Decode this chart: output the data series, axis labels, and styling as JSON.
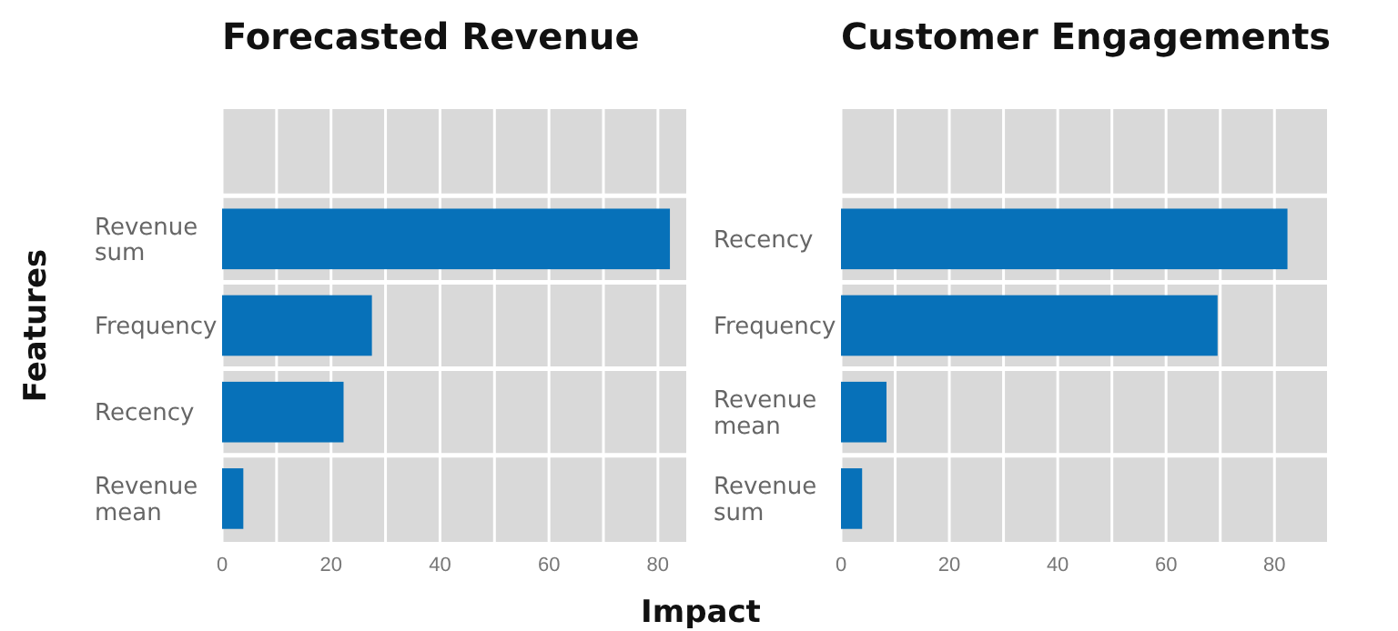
{
  "chart_data": [
    {
      "type": "bar",
      "orientation": "horizontal",
      "title": "Forecasted Revenue",
      "ylabel": "Features",
      "categories": [
        null,
        "Revenue sum",
        "Frequency",
        "Recency",
        "Revenue mean"
      ],
      "values": [
        null,
        82.2,
        27.5,
        22.3,
        3.9
      ],
      "color": "#0771b9",
      "xlim": [
        0,
        85.2
      ],
      "xticks": [
        0,
        {
          "value": 10,
          "label": null
        },
        20,
        {
          "value": 30,
          "label": null
        },
        40,
        {
          "value": 50,
          "label": null
        },
        60,
        {
          "value": 70,
          "label": null
        },
        80
      ],
      "grid": true
    },
    {
      "type": "bar",
      "orientation": "horizontal",
      "title": "Customer Engagements",
      "xlabel": "Impact",
      "categories": [
        null,
        "Recency",
        "Frequency",
        "Revenue mean",
        "Revenue sum"
      ],
      "values": [
        null,
        82.4,
        69.5,
        8.4,
        3.9
      ],
      "color": "#0771b9",
      "xlim": [
        0,
        89.7
      ],
      "xticks": [
        0,
        {
          "value": 10,
          "label": null
        },
        20,
        {
          "value": 30,
          "label": null
        },
        40,
        {
          "value": 50,
          "label": null
        },
        60,
        {
          "value": 70,
          "label": null
        },
        80
      ],
      "grid": true
    }
  ]
}
